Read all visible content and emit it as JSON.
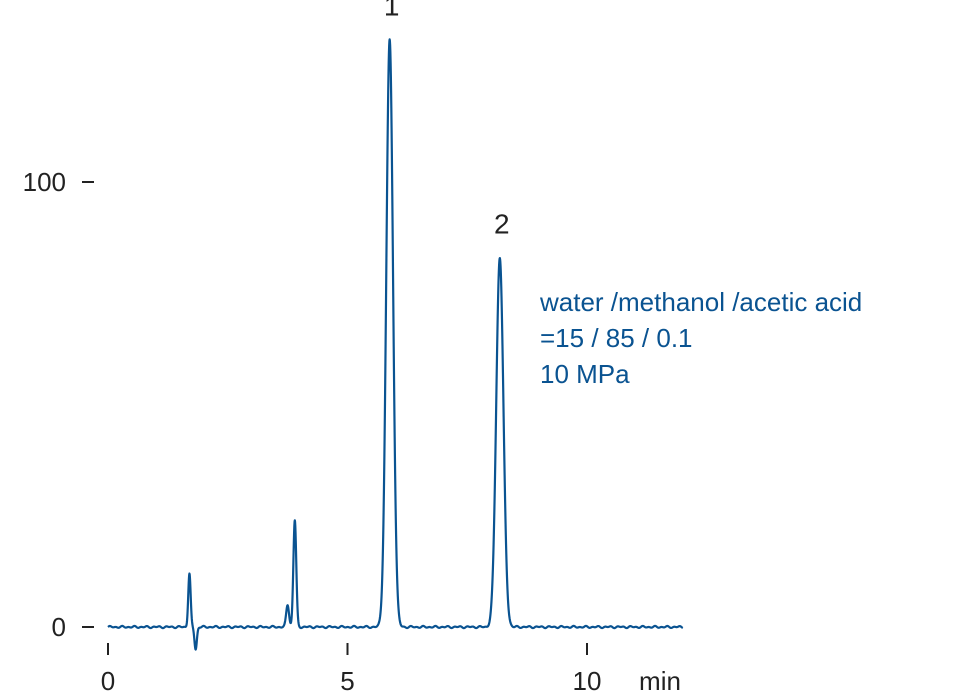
{
  "chart_data": {
    "type": "line",
    "title": "",
    "xlabel": "min",
    "ylabel": "",
    "xlim": [
      0,
      12
    ],
    "ylim": [
      0,
      133
    ],
    "x_ticks": [
      0,
      5,
      10
    ],
    "y_ticks": [
      0,
      100
    ],
    "x_tick_labels": [
      "0",
      "5",
      "10"
    ],
    "y_tick_labels": [
      "0",
      "100"
    ],
    "grid": false,
    "line_color": "#0a5391",
    "annotation_color": "#0a5391",
    "annotation_lines": [
      "water /methanol /acetic acid",
      "=15 / 85 / 0.1",
      "10 MPa"
    ],
    "series": [
      {
        "peaks": [
          {
            "x": 1.7,
            "height": 12
          },
          {
            "x": 1.83,
            "height": -5
          },
          {
            "x": 3.75,
            "height": 5
          },
          {
            "x": 3.9,
            "height": 24
          },
          {
            "x": 5.88,
            "height": 132
          },
          {
            "x": 8.18,
            "height": 83
          }
        ]
      }
    ],
    "peak_labels": [
      {
        "label": "1",
        "x": 5.88
      },
      {
        "label": "2",
        "x": 8.18
      }
    ]
  }
}
